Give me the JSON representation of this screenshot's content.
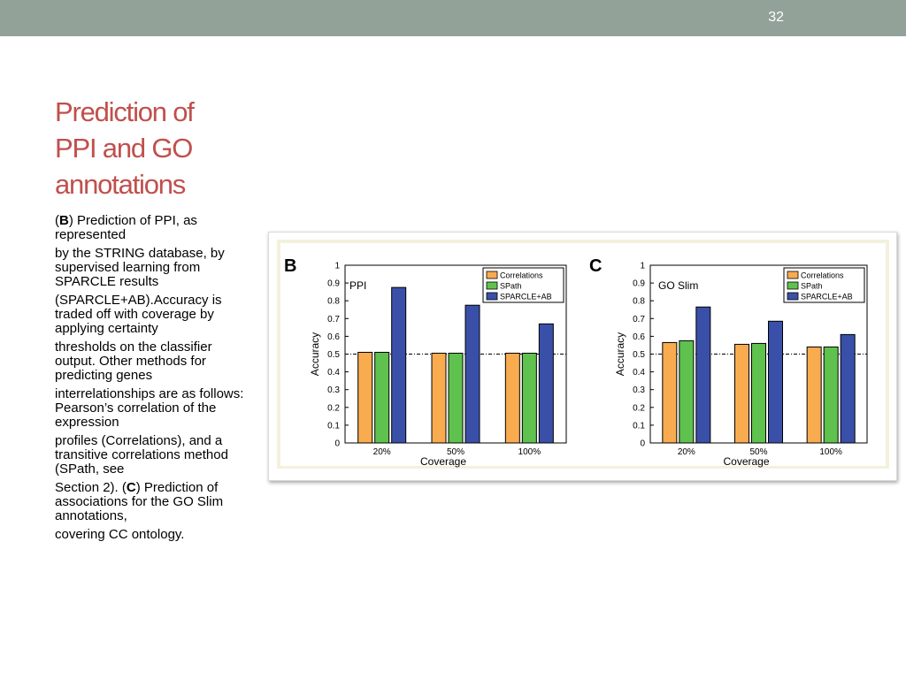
{
  "slide": {
    "number": "32"
  },
  "title": {
    "lines": [
      "Prediction of",
      "PPI and GO",
      "annotations"
    ]
  },
  "body": {
    "paragraphs": [
      [
        {
          "t": "("
        },
        {
          "t": "B",
          "b": true
        },
        {
          "t": ") Prediction of PPI, as represented"
        }
      ],
      [
        {
          "t": "by the STRING database, by supervised learning from SPARCLE results"
        }
      ],
      [
        {
          "t": "(SPARCLE+AB).Accuracy is traded off with coverage by applying certainty"
        }
      ],
      [
        {
          "t": "thresholds on the classifier output. Other methods for predicting genes"
        }
      ],
      [
        {
          "t": "interrelationships are as follows: Pearson’s correlation of the expression"
        }
      ],
      [
        {
          "t": "profiles (Correlations), and a transitive correlations method (SPath, see"
        }
      ],
      [
        {
          "t": "Section 2). ("
        },
        {
          "t": "C",
          "b": true
        },
        {
          "t": ") Prediction of associations for the GO Slim annotations,"
        }
      ],
      [
        {
          "t": "covering CC ontology."
        }
      ]
    ]
  },
  "colors": {
    "topbar": "#93a299",
    "title": "#c0504d",
    "panel_bg": "#f4f1dc",
    "series": [
      "#f9ab4f",
      "#5fc24e",
      "#3a50a8"
    ]
  },
  "chart_data": [
    {
      "type": "bar",
      "panel_label": "B",
      "inset_label": "PPI",
      "categories": [
        "20%",
        "50%",
        "100%"
      ],
      "series": [
        {
          "name": "Correlations",
          "values": [
            0.51,
            0.505,
            0.505
          ]
        },
        {
          "name": "SPath",
          "values": [
            0.51,
            0.505,
            0.505
          ]
        },
        {
          "name": "SPARCLE+AB",
          "values": [
            0.875,
            0.775,
            0.67
          ]
        }
      ],
      "xlabel": "Coverage",
      "ylabel": "Accuracy",
      "ylim": [
        0,
        1
      ],
      "yticks": [
        "0",
        "0.1",
        "0.2",
        "0.3",
        "0.4",
        "0.5",
        "0.6",
        "0.7",
        "0.8",
        "0.9",
        "1"
      ],
      "reference_line": 0.5,
      "legend": "top-right",
      "grid": false
    },
    {
      "type": "bar",
      "panel_label": "C",
      "inset_label": "GO Slim",
      "categories": [
        "20%",
        "50%",
        "100%"
      ],
      "series": [
        {
          "name": "Correlations",
          "values": [
            0.565,
            0.555,
            0.54
          ]
        },
        {
          "name": "SPath",
          "values": [
            0.575,
            0.56,
            0.54
          ]
        },
        {
          "name": "SPARCLE+AB",
          "values": [
            0.765,
            0.685,
            0.61
          ]
        }
      ],
      "xlabel": "Coverage",
      "ylabel": "Accuracy",
      "ylim": [
        0,
        1
      ],
      "yticks": [
        "0",
        "0.1",
        "0.2",
        "0.3",
        "0.4",
        "0.5",
        "0.6",
        "0.7",
        "0.8",
        "0.9",
        "1"
      ],
      "reference_line": 0.5,
      "legend": "top-right",
      "grid": false
    }
  ]
}
